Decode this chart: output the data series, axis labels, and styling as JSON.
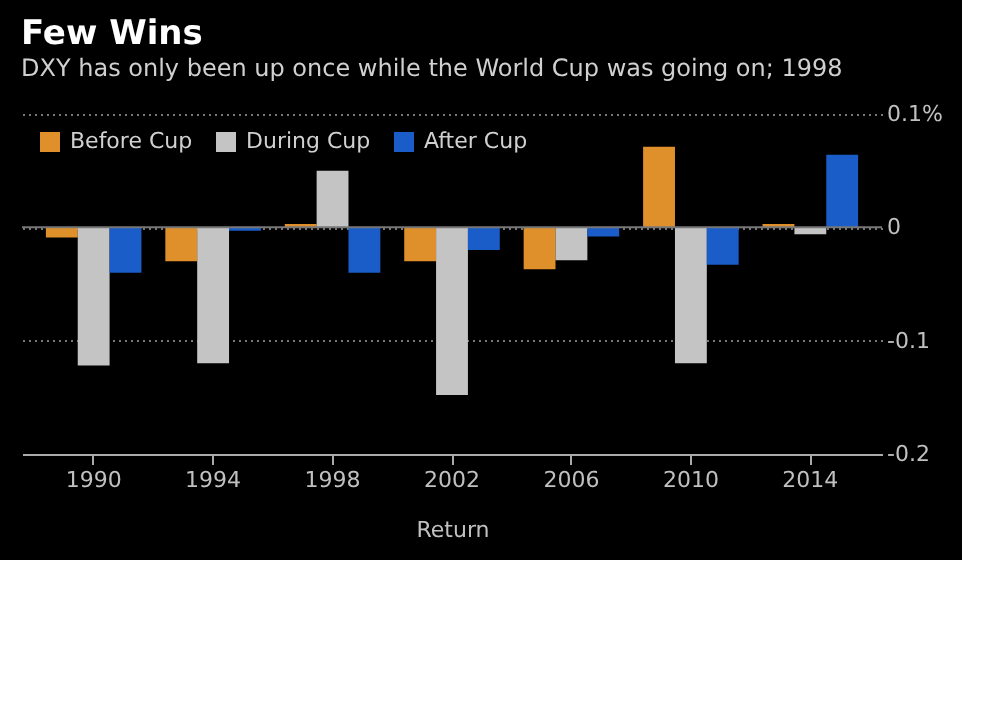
{
  "chart_data": {
    "type": "bar",
    "title": "Few Wins",
    "subtitle": "DXY has only been up once while the World Cup was going on; 1998",
    "xlabel": "Return",
    "categories": [
      "1990",
      "1994",
      "1998",
      "2002",
      "2006",
      "2010",
      "2014"
    ],
    "series": [
      {
        "name": "Before Cup",
        "color": "#e0902a",
        "values": [
          -0.009,
          -0.03,
          0.003,
          -0.03,
          -0.037,
          0.071,
          0.003
        ]
      },
      {
        "name": "During Cup",
        "color": "#c4c4c4",
        "values": [
          -0.122,
          -0.12,
          0.05,
          -0.148,
          -0.029,
          -0.12,
          -0.006
        ]
      },
      {
        "name": "After Cup",
        "color": "#1a5cc8",
        "values": [
          -0.04,
          -0.003,
          -0.04,
          -0.02,
          -0.008,
          -0.033,
          0.064
        ]
      }
    ],
    "ylim": [
      -0.2,
      0.1
    ],
    "yticks": [
      {
        "value": 0.1,
        "label": "0.1%"
      },
      0,
      -0.1,
      -0.2
    ],
    "grid": "y",
    "legend": "top left"
  }
}
